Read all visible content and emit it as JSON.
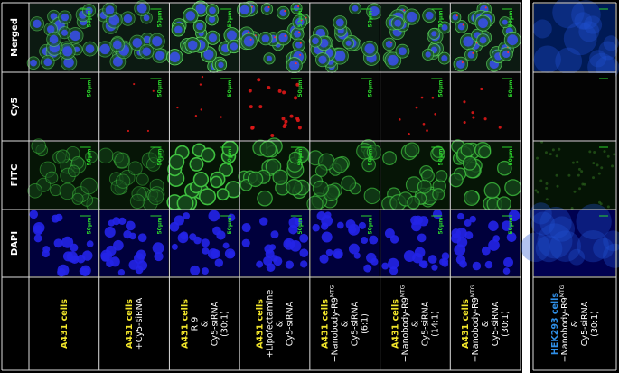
{
  "row_labels": [
    "Merged",
    "Cy5",
    "FITC",
    "DAPI"
  ],
  "scale_bar": "50μm",
  "columns": [
    {
      "cell": "A431 cells",
      "lines": []
    },
    {
      "cell": "A431 cells",
      "lines": [
        "+Cy5-siRNA"
      ]
    },
    {
      "cell": "A431 cells",
      "lines": [
        "R 9",
        "&",
        "Cy5-siRNA",
        "(30:1)"
      ]
    },
    {
      "cell": "A431 cells",
      "lines": [
        "+Lipofectamine",
        "&",
        "Cy5-siRNA"
      ]
    },
    {
      "cell": "A431 cells",
      "lines": [
        {
          "text": "+Nanobody-R9",
          "sup": "MTG"
        },
        "&",
        "Cy5-siRNA",
        "(6:1)"
      ]
    },
    {
      "cell": "A431 cells",
      "lines": [
        {
          "text": "+Nanobody-R9",
          "sup": "MTG"
        },
        "&",
        "Cy5-siRNA",
        "(14:1)"
      ]
    },
    {
      "cell": "A431 cells",
      "lines": [
        {
          "text": "+Nanobody-R9",
          "sup": "MTG"
        },
        "&",
        "Cy5-siRNA",
        "(30:1)"
      ]
    }
  ],
  "side_column": {
    "cell": "HEK293 cells",
    "lines": [
      {
        "text": "+Nanobody-R9",
        "sup": "MTG"
      },
      "&",
      "Cy5-siRNA",
      "(30:1)"
    ]
  }
}
